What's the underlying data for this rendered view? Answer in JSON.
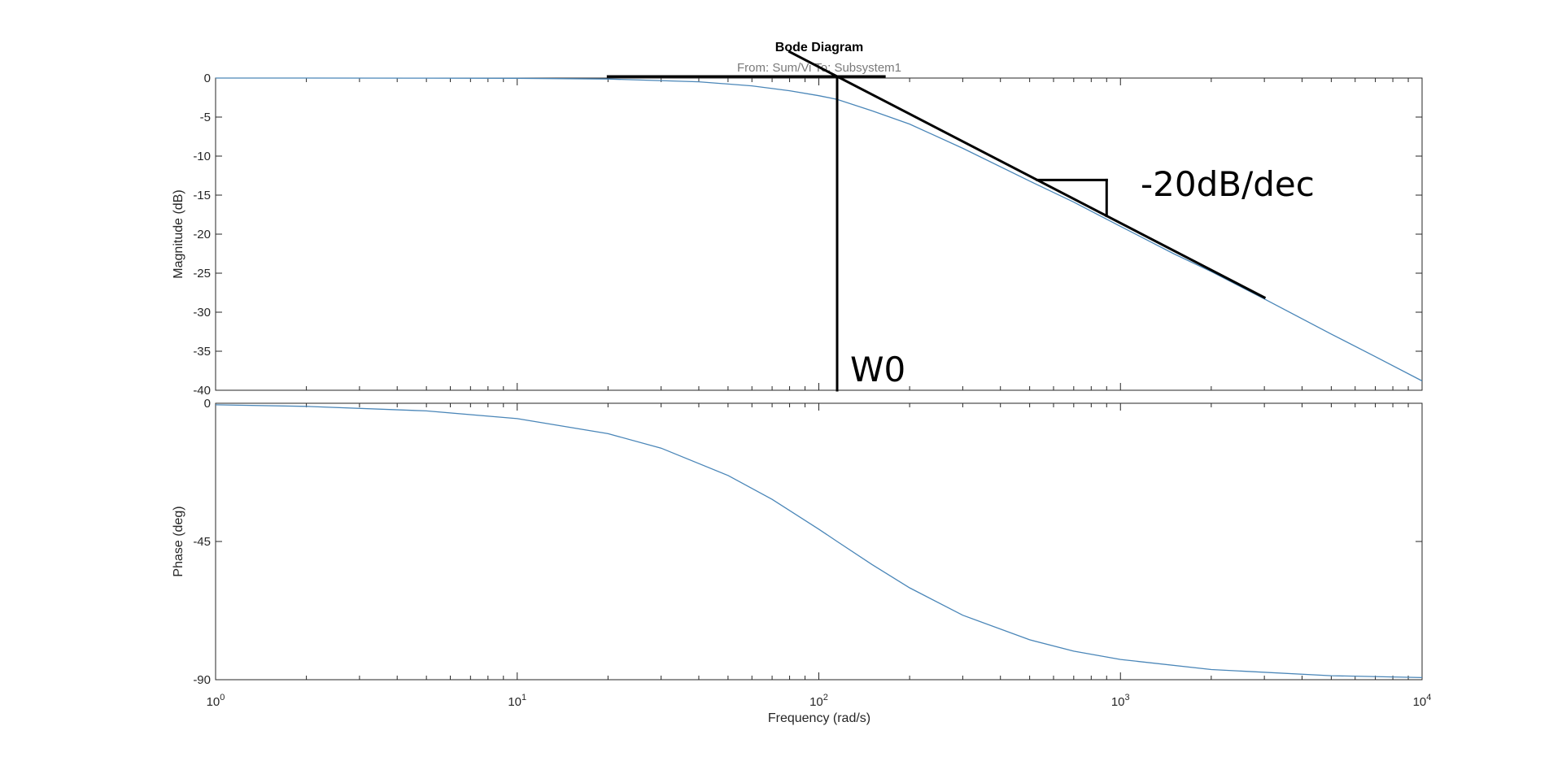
{
  "chart_data": {
    "type": "line",
    "title": "Bode Diagram",
    "subtitle": "From: Sum/Vi  To: Subsystem1",
    "xlabel": "Frequency  (rad/s)",
    "x_scale": "log",
    "xlim": [
      1,
      10000
    ],
    "x_ticks": [
      {
        "base": "10",
        "exp": "0"
      },
      {
        "base": "10",
        "exp": "1"
      },
      {
        "base": "10",
        "exp": "2"
      },
      {
        "base": "10",
        "exp": "3"
      },
      {
        "base": "10",
        "exp": "4"
      }
    ],
    "colors": {
      "curve": "#4a86b8",
      "annotation": "#000000",
      "axes": "#262626"
    },
    "panels": [
      {
        "name": "magnitude",
        "ylabel": "Magnitude (dB)",
        "ylim": [
          -40,
          0
        ],
        "y_ticks": [
          "0",
          "-5",
          "-10",
          "-15",
          "-20",
          "-25",
          "-30",
          "-35",
          "-40"
        ],
        "series": [
          {
            "x": [
              1,
              2,
              5,
              10,
              20,
              40,
              60,
              80,
              100,
              115,
              150,
              200,
              300,
              500,
              700,
              1000,
              1500,
              2000,
              3000,
              5000,
              7000,
              10000
            ],
            "y": [
              0,
              -0.001,
              -0.008,
              -0.03,
              -0.13,
              -0.48,
              -1.0,
              -1.63,
              -2.26,
              -2.73,
              -4.2,
              -5.9,
              -9.0,
              -13.2,
              -15.9,
              -19.0,
              -22.5,
              -24.8,
              -28.3,
              -32.8,
              -35.7,
              -38.8
            ]
          }
        ]
      },
      {
        "name": "phase",
        "ylabel": "Phase (deg)",
        "ylim": [
          -90,
          0
        ],
        "y_ticks": [
          "0",
          "-45",
          "-90"
        ],
        "series": [
          {
            "x": [
              1,
              2,
              5,
              10,
              20,
              30,
              50,
              70,
              100,
              115,
              150,
              200,
              300,
              500,
              700,
              1000,
              2000,
              5000,
              10000
            ],
            "y": [
              -0.5,
              -1.0,
              -2.5,
              -5.0,
              -9.9,
              -14.6,
              -23.5,
              -31.3,
              -41.0,
              -45.0,
              -52.5,
              -60.1,
              -69.0,
              -77.0,
              -80.7,
              -83.4,
              -86.7,
              -88.7,
              -89.3
            ]
          }
        ]
      }
    ],
    "annotations": {
      "corner_label": "W0",
      "corner_frequency": 115,
      "slope_label": "-20dB/dec",
      "horizontal_asymptote": {
        "x_from": 20,
        "x_to": 165,
        "y": 0
      },
      "slope_asymptote": {
        "x_from": 80,
        "x_to": 3000,
        "slope_db_per_decade": -20
      },
      "slope_triangle": {
        "x_from": 530,
        "x_to": 900
      }
    }
  }
}
